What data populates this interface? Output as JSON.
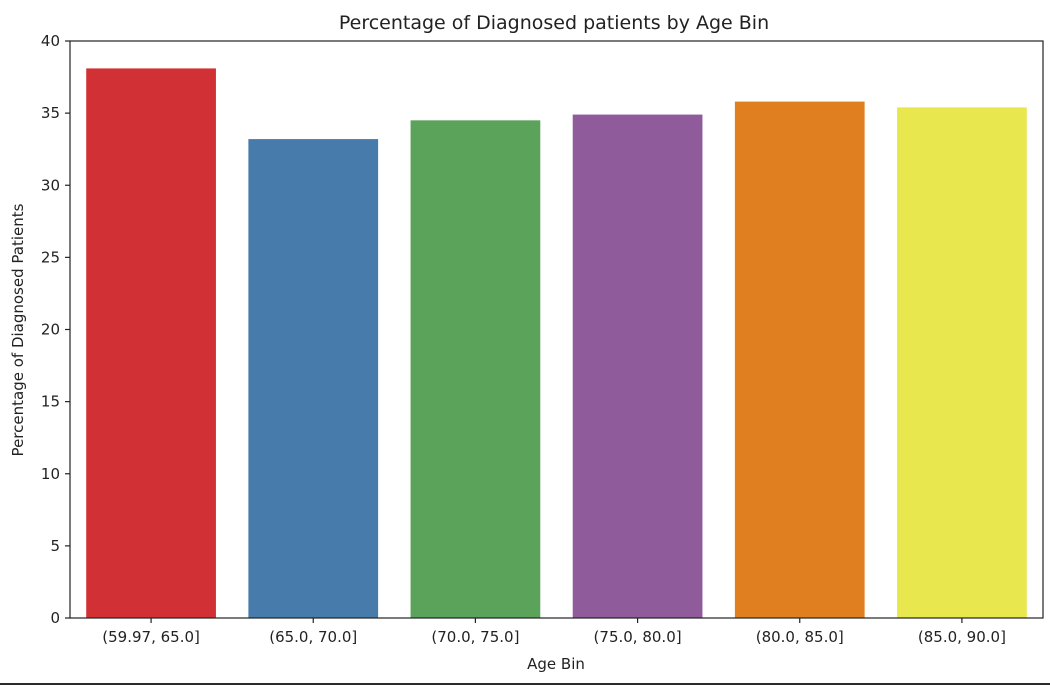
{
  "chart_data": {
    "type": "bar",
    "title": "Percentage of Diagnosed patients by Age Bin",
    "xlabel": "Age Bin",
    "ylabel": "Percentage of Diagnosed Patients",
    "categories": [
      "(59.97, 65.0]",
      "(65.0, 70.0]",
      "(70.0, 75.0]",
      "(75.0, 80.0]",
      "(80.0, 85.0]",
      "(85.0, 90.0]"
    ],
    "values": [
      38.1,
      33.2,
      34.5,
      34.9,
      35.8,
      35.4
    ],
    "colors": [
      "#d13135",
      "#467bab",
      "#5ba25a",
      "#8f5b9b",
      "#e07f20",
      "#e8e74e"
    ],
    "ylim": [
      0,
      40
    ],
    "yticks": [
      "0",
      "5",
      "10",
      "15",
      "20",
      "25",
      "30",
      "35",
      "40"
    ],
    "grid": false
  }
}
